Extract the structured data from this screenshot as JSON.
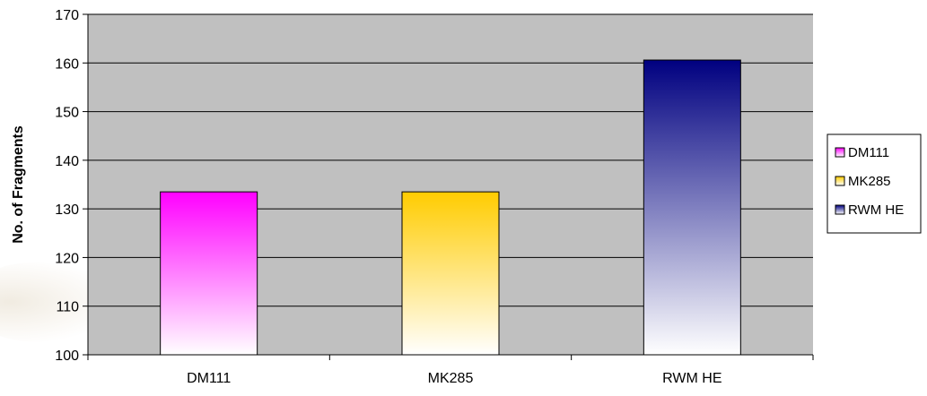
{
  "chart_data": {
    "type": "bar",
    "title": "",
    "xlabel": "",
    "ylabel": "No. of Fragments",
    "categories": [
      "DM111",
      "MK285",
      "RWM HE"
    ],
    "values": [
      133.5,
      133.5,
      160.6
    ],
    "ylim": [
      100,
      170
    ],
    "y_ticks": [
      100,
      110,
      120,
      130,
      140,
      150,
      160,
      170
    ],
    "grid": true,
    "legend_position": "right",
    "legend": [
      "DM111",
      "MK285",
      "RWM HE"
    ],
    "plot_background": "#C0C0C0",
    "series_colors": [
      {
        "top": "#FF00FF",
        "bottom": "#FFFFFF"
      },
      {
        "top": "#FFCC00",
        "bottom": "#FFFFFF"
      },
      {
        "top": "#000080",
        "bottom": "#FFFFFF"
      }
    ]
  }
}
